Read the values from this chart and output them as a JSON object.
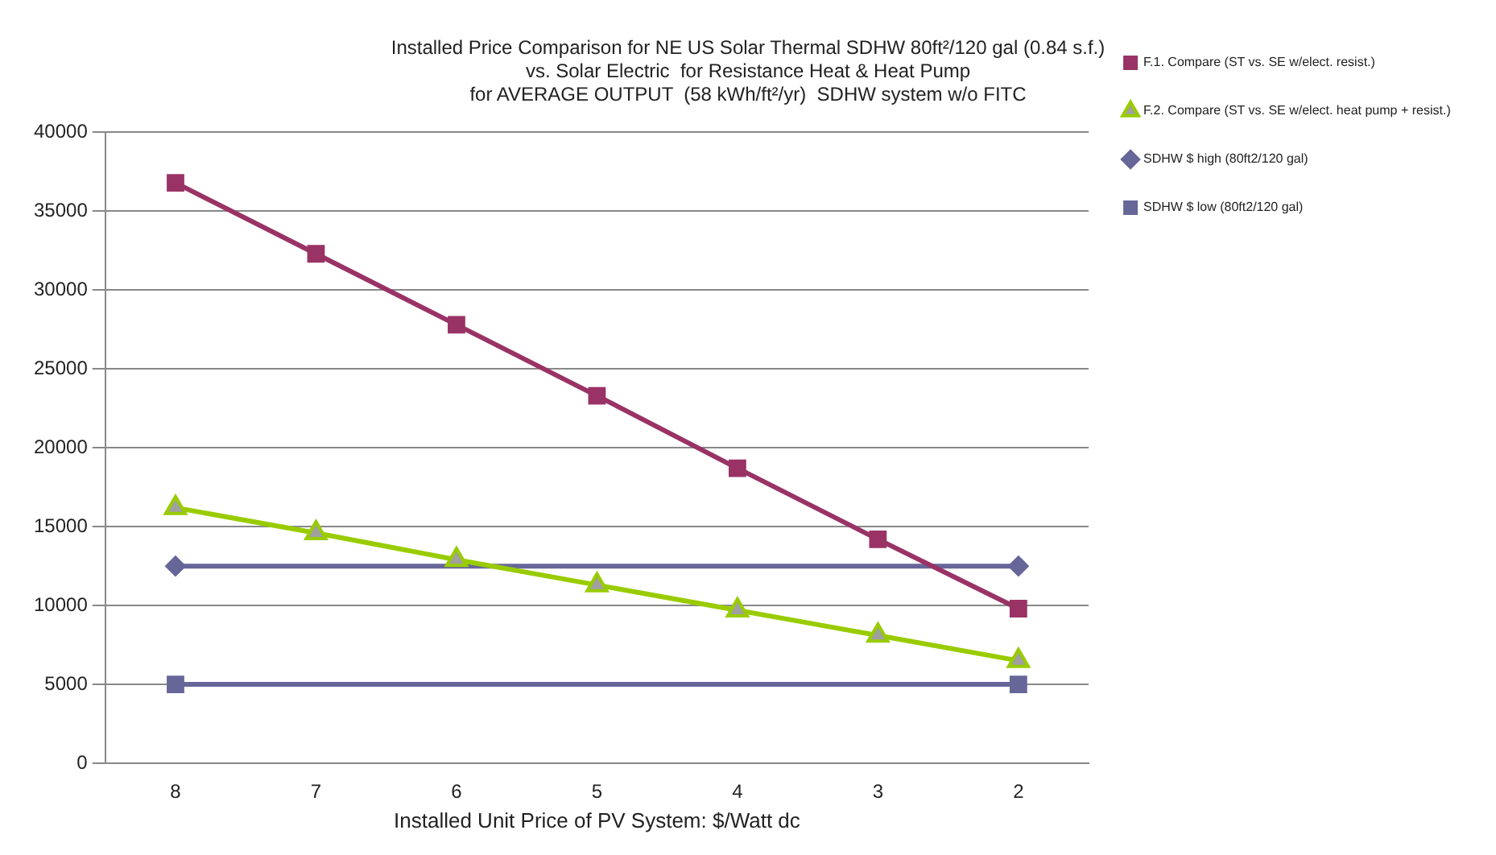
{
  "chart_data": {
    "type": "line",
    "title": [
      "Installed Price Comparison for NE US Solar Thermal SDHW 80ft²/120 gal (0.84 s.f.)",
      "vs. Solar Electric  for Resistance Heat & Heat Pump",
      "for AVERAGE OUTPUT  (58 kWh/ft²/yr)  SDHW system w/o FITC"
    ],
    "xlabel": "Installed Unit Price of PV System: $/Watt dc",
    "categories": [
      "8",
      "7",
      "6",
      "5",
      "4",
      "3",
      "2"
    ],
    "series": [
      {
        "name": "F.1. Compare (ST vs. SE w/elect. resist.)",
        "color": "#993366",
        "marker": "square",
        "values": [
          36800,
          32300,
          27800,
          23300,
          18700,
          14200,
          9800
        ]
      },
      {
        "name": "F.2. Compare (ST vs. SE w/elect. heat pump + resist.)",
        "color": "#99cc00",
        "marker": "triangle",
        "values": [
          16200,
          14600,
          12900,
          11300,
          9700,
          8100,
          6500
        ]
      },
      {
        "name": "SDHW $ high (80ft2/120 gal)",
        "color": "#666699",
        "marker": "diamond",
        "x": [
          "8",
          "2"
        ],
        "values": [
          12500,
          12500
        ]
      },
      {
        "name": "SDHW $ low (80ft2/120 gal)",
        "color": "#666699",
        "marker": "square",
        "x": [
          "8",
          "2"
        ],
        "values": [
          5000,
          5000
        ]
      }
    ],
    "ylim": [
      0,
      40000
    ],
    "yticks": [
      0,
      5000,
      10000,
      15000,
      20000,
      25000,
      30000,
      35000,
      40000
    ],
    "grid": "y",
    "legend": "right",
    "line_style": "solid"
  }
}
